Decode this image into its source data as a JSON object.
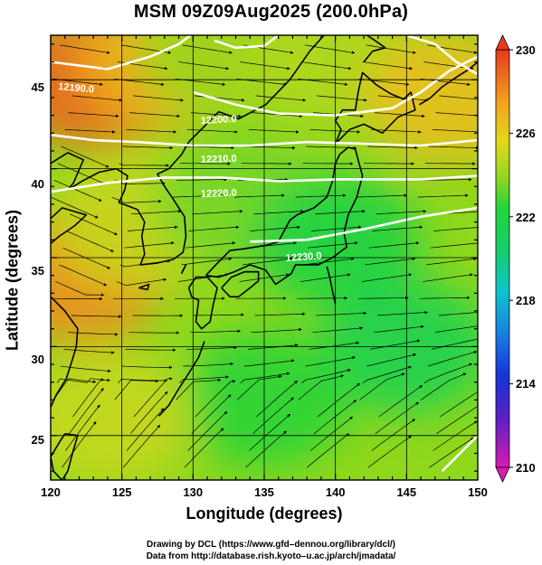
{
  "title": "MSM 09Z09Aug2025 (200.0hPa)",
  "axes": {
    "x_label": "Longitude (degrees)",
    "y_label": "Latitude  (degrees)",
    "x_ticks": [
      "120",
      "125",
      "130",
      "135",
      "140",
      "145",
      "150"
    ],
    "y_ticks": [
      "25",
      "30",
      "35",
      "40",
      "45"
    ]
  },
  "colorbar": {
    "ticks": [
      "230",
      "226",
      "222",
      "218",
      "214",
      "210"
    ]
  },
  "contour_labels": [
    "12190.0",
    "12200.0",
    "12210.0",
    "12220.0",
    "12230.0"
  ],
  "credits": {
    "line1": "Drawing by DCL (https://www.gfd–dennou.org/library/dcl/)",
    "line2": "Data from http://database.rish.kyoto–u.ac.jp/arch/jmadata/"
  },
  "colors": {
    "warm": "#e8461c",
    "orange": "#f08a1e",
    "yellow": "#d9dc1e",
    "green": "#27d437",
    "cyan": "#11c4c8",
    "blue": "#1846d8",
    "magenta": "#c61aa6"
  },
  "chart_data": {
    "type": "heatmap",
    "title": "MSM 09Z09Aug2025 (200.0hPa)",
    "xlabel": "Longitude (degrees)",
    "ylabel": "Latitude  (degrees)",
    "xlim": [
      120,
      150
    ],
    "ylim": [
      22.5,
      47.5
    ],
    "colorbar_range": [
      210,
      230
    ],
    "colorbar_ticks": [
      230,
      226,
      222,
      218,
      214,
      210
    ],
    "contour_interval": 10,
    "contours": [
      {
        "label": "12190.0",
        "lon": 122.5,
        "lat": 45.5
      },
      {
        "label": "12200.0",
        "lon": 131.5,
        "lat": 43.3
      },
      {
        "label": "12210.0",
        "lon": 129.8,
        "lat": 41.4
      },
      {
        "label": "12220.0",
        "lon": 129.5,
        "lat": 39.4
      },
      {
        "label": "12230.0",
        "lon": 138.0,
        "lat": 35.9
      }
    ],
    "field_samples": [
      {
        "lon": 123,
        "lat": 45,
        "value": 229
      },
      {
        "lon": 128,
        "lat": 46,
        "value": 227
      },
      {
        "lon": 132,
        "lat": 46.5,
        "value": 224
      },
      {
        "lon": 140,
        "lat": 46,
        "value": 224.5
      },
      {
        "lon": 148,
        "lat": 44,
        "value": 226.5
      },
      {
        "lon": 122,
        "lat": 34,
        "value": 228
      },
      {
        "lon": 126,
        "lat": 37,
        "value": 225
      },
      {
        "lon": 133,
        "lat": 38,
        "value": 223.5
      },
      {
        "lon": 140,
        "lat": 36,
        "value": 222
      },
      {
        "lon": 145,
        "lat": 30,
        "value": 221.5
      },
      {
        "lon": 135,
        "lat": 27,
        "value": 222.5
      },
      {
        "lon": 124,
        "lat": 26,
        "value": 225
      }
    ]
  }
}
